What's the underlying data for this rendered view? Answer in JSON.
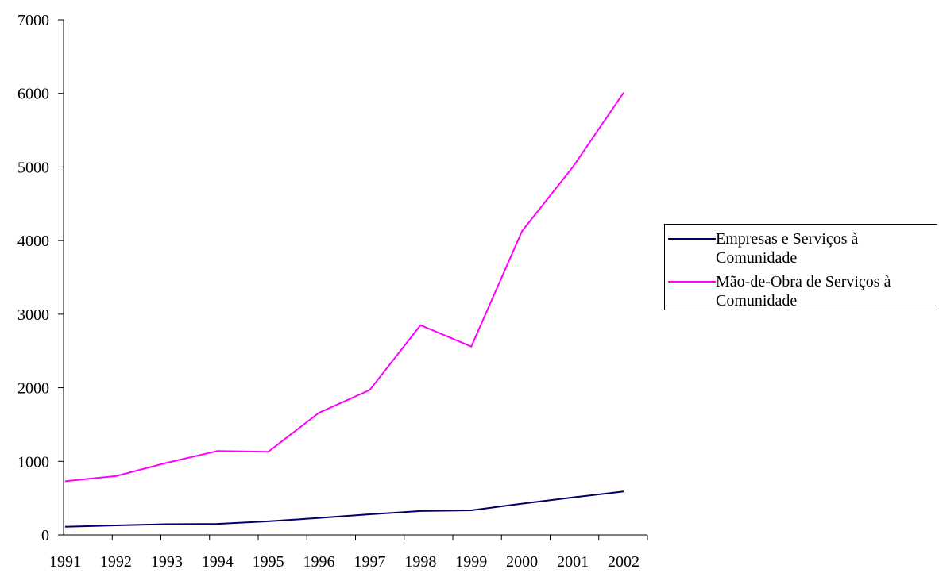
{
  "chart_data": {
    "type": "line",
    "categories": [
      "1991",
      "1992",
      "1993",
      "1994",
      "1995",
      "1996",
      "1997",
      "1998",
      "1999",
      "2000",
      "2001",
      "2002"
    ],
    "series": [
      {
        "name": "Empresas e Serviços à Comunidade",
        "color": "#000066",
        "values": [
          110,
          130,
          145,
          150,
          185,
          230,
          280,
          325,
          335,
          425,
          510,
          590
        ]
      },
      {
        "name": "Mão-de-Obra de Serviços à Comunidade",
        "color": "#ff00ff",
        "values": [
          730,
          800,
          980,
          1140,
          1130,
          1660,
          1970,
          2850,
          2560,
          4130,
          5000,
          6010
        ]
      }
    ],
    "ylim": [
      0,
      7000
    ],
    "yticks": [
      0,
      1000,
      2000,
      3000,
      4000,
      5000,
      6000,
      7000
    ],
    "legend": "right"
  }
}
